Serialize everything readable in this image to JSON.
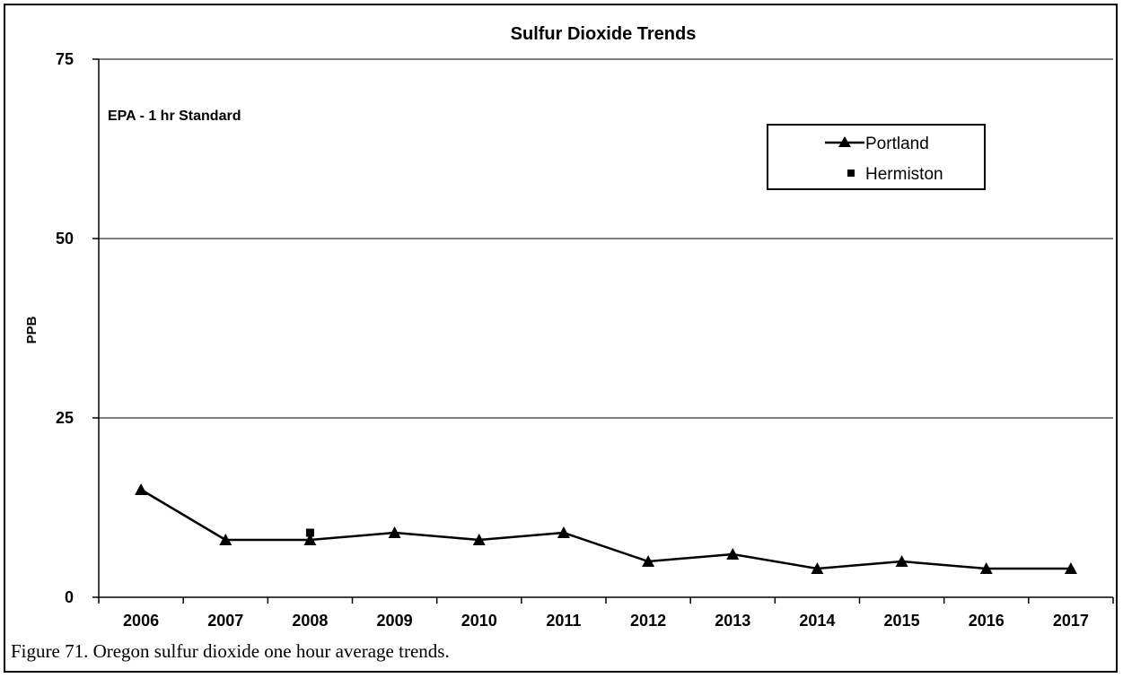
{
  "caption": "Figure 71. Oregon sulfur dioxide one hour average trends.",
  "chart_data": {
    "type": "line",
    "title": "Sulfur Dioxide Trends",
    "xlabel": "",
    "ylabel": "PPB",
    "standard_label": "EPA - 1 hr  Standard",
    "categories": [
      "2006",
      "2007",
      "2008",
      "2009",
      "2010",
      "2011",
      "2012",
      "2013",
      "2014",
      "2015",
      "2016",
      "2017"
    ],
    "ylim": [
      0,
      75
    ],
    "yticks": [
      "0",
      "25",
      "50",
      "75"
    ],
    "grid": true,
    "legend": "top-right",
    "series": [
      {
        "name": "Portland",
        "marker": "triangle",
        "values": [
          15,
          8,
          8,
          9,
          8,
          9,
          5,
          6,
          4,
          5,
          4,
          4
        ]
      },
      {
        "name": "Hermiston",
        "marker": "square",
        "values": [
          null,
          null,
          9,
          null,
          null,
          null,
          null,
          null,
          null,
          null,
          null,
          null
        ]
      }
    ],
    "colors": {
      "line": "#000000",
      "grid": "#000000"
    }
  }
}
